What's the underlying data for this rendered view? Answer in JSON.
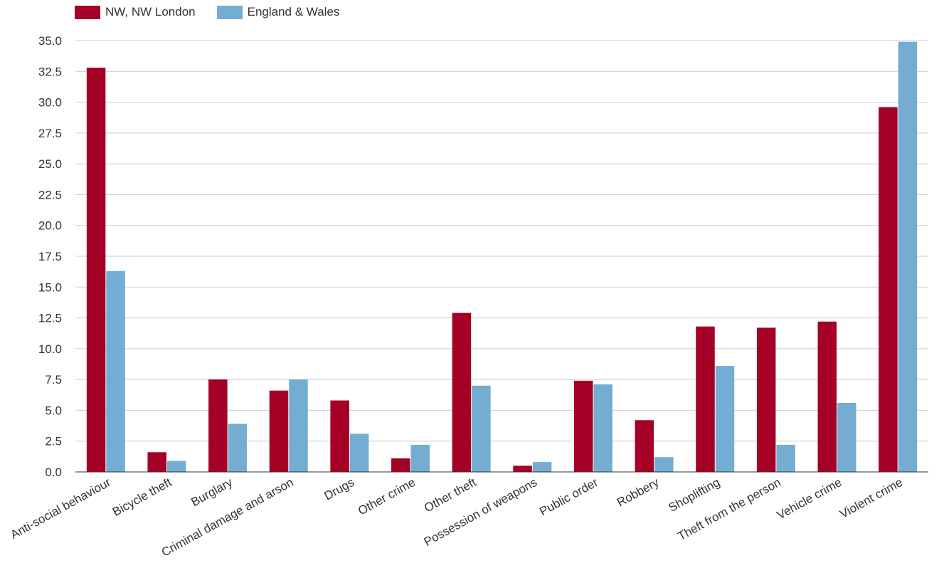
{
  "chart_data": {
    "type": "bar",
    "title": "",
    "xlabel": "",
    "ylabel": "",
    "ylim": [
      0,
      35
    ],
    "yticks": [
      "0.0",
      "2.5",
      "5.0",
      "7.5",
      "10.0",
      "12.5",
      "15.0",
      "17.5",
      "20.0",
      "22.5",
      "25.0",
      "27.5",
      "30.0",
      "32.5",
      "35.0"
    ],
    "grid": true,
    "legend_position": "top-left",
    "categories": [
      "Anti-social behaviour",
      "Bicycle theft",
      "Burglary",
      "Criminal damage and arson",
      "Drugs",
      "Other crime",
      "Other theft",
      "Possession of weapons",
      "Public order",
      "Robbery",
      "Shoplifting",
      "Theft from the person",
      "Vehicle crime",
      "Violent crime"
    ],
    "series": [
      {
        "name": "NW, NW London",
        "color": "#a50026",
        "values": [
          32.8,
          1.6,
          7.5,
          6.6,
          5.8,
          1.1,
          12.9,
          0.5,
          7.4,
          4.2,
          11.8,
          11.7,
          12.2,
          29.6
        ]
      },
      {
        "name": "England & Wales",
        "color": "#74add1",
        "values": [
          16.3,
          0.9,
          3.9,
          7.5,
          3.1,
          2.2,
          7.0,
          0.8,
          7.1,
          1.2,
          8.6,
          2.2,
          5.6,
          34.9
        ]
      }
    ]
  }
}
